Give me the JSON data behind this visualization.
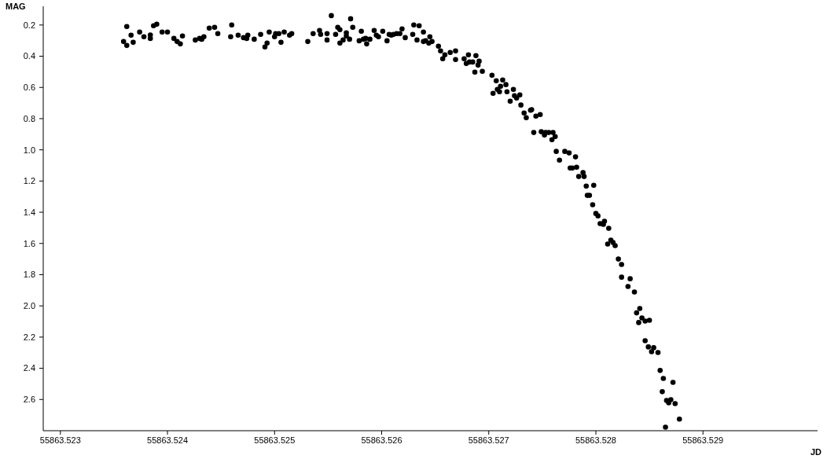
{
  "chart_data": {
    "type": "scatter",
    "xlabel": "JD",
    "ylabel": "MAG",
    "color": "#000000",
    "marker": "circle",
    "xlim": [
      55863.52284,
      55863.53007
    ],
    "xticks": [
      55863.523,
      55863.524,
      55863.525,
      55863.526,
      55863.527,
      55863.528,
      55863.529
    ],
    "ylim": [
      2.8,
      0.08
    ],
    "yticks": [
      0.2,
      0.4,
      0.6,
      0.8,
      {
        "value": 1,
        "label": "1.0"
      },
      1.2,
      1.4,
      1.6,
      1.8,
      {
        "value": 2,
        "label": "2.0"
      },
      2.2,
      2.4,
      2.6
    ],
    "x": [
      55863.52359,
      55863.52362,
      55863.52362,
      55863.52366,
      55863.52368,
      55863.52374,
      55863.52378,
      55863.52384,
      55863.52384,
      55863.52387,
      55863.5239,
      55863.52395,
      55863.524,
      55863.52406,
      55863.52409,
      55863.52412,
      55863.52414,
      55863.52426,
      55863.5243,
      55863.52432,
      55863.52434,
      55863.52439,
      55863.52444,
      55863.52447,
      55863.52459,
      55863.5246,
      55863.52466,
      55863.52471,
      55863.52474,
      55863.52475,
      55863.52481,
      55863.52487,
      55863.52491,
      55863.52493,
      55863.52495,
      55863.525,
      55863.52501,
      55863.52504,
      55863.52506,
      55863.52509,
      55863.52514,
      55863.52516,
      55863.52531,
      55863.52536,
      55863.52542,
      55863.52543,
      55863.52549,
      55863.52549,
      55863.52553,
      55863.52557,
      55863.52559,
      55863.52561,
      55863.52561,
      55863.52564,
      55863.52567,
      55863.52567,
      55863.5257,
      55863.52571,
      55863.52573,
      55863.52579,
      55863.52581,
      55863.52583,
      55863.52585,
      55863.52586,
      55863.52589,
      55863.52593,
      55863.52595,
      55863.52597,
      55863.52601,
      55863.52605,
      55863.52607,
      55863.52609,
      55863.52611,
      55863.52614,
      55863.52617,
      55863.52619,
      55863.52622,
      55863.52629,
      55863.5263,
      55863.52633,
      55863.52635,
      55863.52639,
      55863.52639,
      55863.52641,
      55863.52644,
      55863.52645,
      55863.52647,
      55863.52653,
      55863.52655,
      55863.52657,
      55863.52659,
      55863.52664,
      55863.52669,
      55863.52669,
      55863.52677,
      55863.52679,
      55863.52681,
      55863.52682,
      55863.52685,
      55863.52687,
      55863.52688,
      55863.5269,
      55863.52691,
      55863.52694,
      55863.52703,
      55863.52704,
      55863.52707,
      55863.52708,
      55863.5271,
      55863.52711,
      55863.52713,
      55863.52716,
      55863.52717,
      55863.5272,
      55863.52723,
      55863.52724,
      55863.52726,
      55863.52729,
      55863.5273,
      55863.52733,
      55863.52735,
      55863.52739,
      55863.5274,
      55863.52742,
      55863.52744,
      55863.52748,
      55863.52749,
      55863.52752,
      55863.52753,
      55863.52756,
      55863.52759,
      55863.5276,
      55863.52762,
      55863.52763,
      55863.52766,
      55863.52771,
      55863.52775,
      55863.52776,
      55863.52778,
      55863.52781,
      55863.52782,
      55863.52784,
      55863.52788,
      55863.52789,
      55863.52791,
      55863.52792,
      55863.52794,
      55863.52797,
      55863.52798,
      55863.528,
      55863.52802,
      55863.52804,
      55863.52807,
      55863.52808,
      55863.52811,
      55863.52812,
      55863.52814,
      55863.52816,
      55863.52818,
      55863.52821,
      55863.52824,
      55863.52824,
      55863.5283,
      55863.52832,
      55863.52836,
      55863.52838,
      55863.5284,
      55863.52841,
      55863.52843,
      55863.52846,
      55863.52846,
      55863.52849,
      55863.5285,
      55863.52852,
      55863.52854,
      55863.52858,
      55863.5286,
      55863.52862,
      55863.52863,
      55863.52865,
      55863.52866,
      55863.52868,
      55863.5287,
      55863.52872,
      55863.52874,
      55863.52878
    ],
    "values": [
      0.306,
      0.21,
      0.331,
      0.265,
      0.311,
      0.245,
      0.275,
      0.286,
      0.264,
      0.205,
      0.195,
      0.245,
      0.245,
      0.286,
      0.306,
      0.321,
      0.27,
      0.296,
      0.286,
      0.291,
      0.275,
      0.22,
      0.215,
      0.255,
      0.275,
      0.2,
      0.265,
      0.281,
      0.286,
      0.265,
      0.291,
      0.26,
      0.341,
      0.316,
      0.245,
      0.275,
      0.255,
      0.255,
      0.311,
      0.245,
      0.265,
      0.255,
      0.306,
      0.255,
      0.235,
      0.26,
      0.255,
      0.296,
      0.14,
      0.26,
      0.215,
      0.316,
      0.23,
      0.296,
      0.25,
      0.27,
      0.291,
      0.16,
      0.215,
      0.301,
      0.24,
      0.291,
      0.286,
      0.321,
      0.291,
      0.235,
      0.265,
      0.275,
      0.24,
      0.301,
      0.26,
      0.265,
      0.26,
      0.255,
      0.255,
      0.225,
      0.281,
      0.26,
      0.2,
      0.296,
      0.205,
      0.306,
      0.245,
      0.301,
      0.316,
      0.275,
      0.306,
      0.336,
      0.366,
      0.416,
      0.391,
      0.376,
      0.366,
      0.421,
      0.416,
      0.447,
      0.391,
      0.437,
      0.437,
      0.502,
      0.396,
      0.457,
      0.432,
      0.497,
      0.522,
      0.638,
      0.557,
      0.613,
      0.628,
      0.593,
      0.552,
      0.582,
      0.628,
      0.688,
      0.613,
      0.653,
      0.668,
      0.648,
      0.713,
      0.764,
      0.794,
      0.746,
      0.742,
      0.889,
      0.784,
      0.774,
      0.884,
      0.905,
      0.889,
      0.889,
      0.935,
      0.889,
      0.915,
      1.01,
      1.066,
      1.01,
      1.02,
      1.116,
      1.116,
      1.045,
      1.111,
      1.171,
      1.146,
      1.171,
      1.232,
      1.292,
      1.292,
      1.352,
      1.227,
      1.408,
      1.423,
      1.473,
      1.478,
      1.458,
      1.604,
      1.503,
      1.579,
      1.594,
      1.614,
      1.7,
      1.735,
      1.816,
      1.876,
      1.826,
      1.911,
      2.045,
      2.107,
      2.017,
      2.077,
      2.097,
      2.223,
      2.263,
      2.092,
      2.294,
      2.268,
      2.299,
      2.414,
      2.55,
      2.465,
      2.777,
      2.606,
      2.621,
      2.601,
      2.49,
      2.626,
      2.726
    ]
  }
}
